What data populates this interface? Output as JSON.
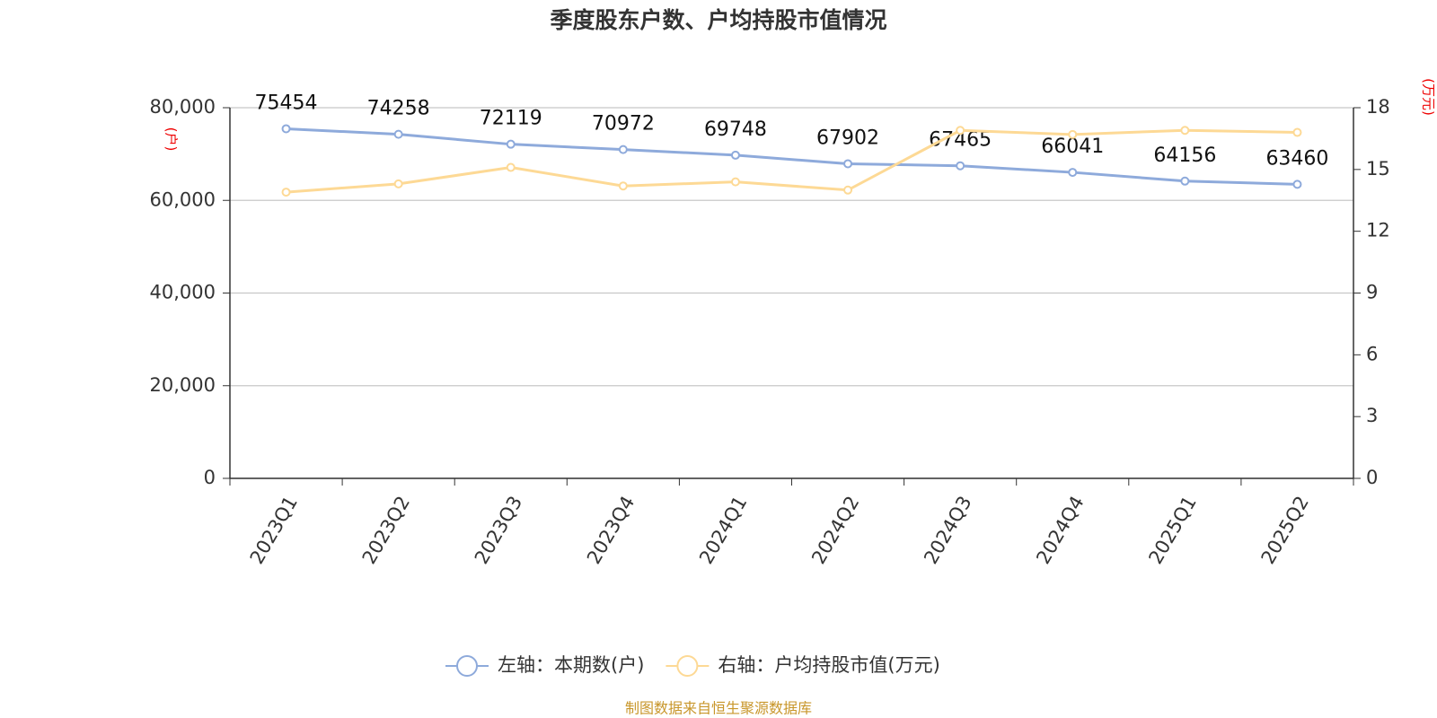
{
  "chart_data": {
    "type": "line",
    "title": "季度股东户数、户均持股市值情况",
    "categories": [
      "2023Q1",
      "2023Q2",
      "2023Q3",
      "2023Q4",
      "2024Q1",
      "2024Q2",
      "2024Q3",
      "2024Q4",
      "2025Q1",
      "2025Q2"
    ],
    "series": [
      {
        "name": "左轴：本期数(户)",
        "color": "#8eaadb",
        "axis": "y",
        "show_labels": true,
        "values": [
          75454,
          74258,
          72119,
          70972,
          69748,
          67902,
          67465,
          66041,
          64156,
          63460
        ]
      },
      {
        "name": "右轴：户均持股市值(万元)",
        "color": "#fdd995",
        "axis": "y2",
        "show_labels": false,
        "values": [
          13.9,
          14.3,
          15.1,
          14.2,
          14.4,
          14.0,
          16.9,
          16.7,
          16.9,
          16.8
        ]
      }
    ],
    "ylabel": "(户)",
    "y2label": "(万元)",
    "ylim": [
      0,
      80000
    ],
    "yticks": [
      0,
      {
        "value": 20000,
        "label": "20,000"
      },
      {
        "value": 40000,
        "label": "40,000"
      },
      {
        "value": 60000,
        "label": "60,000"
      },
      {
        "value": 80000,
        "label": "80,000"
      }
    ],
    "y2lim": [
      0,
      18
    ],
    "y2ticks": [
      0,
      3,
      6,
      9,
      12,
      15,
      18
    ],
    "grid": true,
    "source": "制图数据来自恒生聚源数据库"
  }
}
